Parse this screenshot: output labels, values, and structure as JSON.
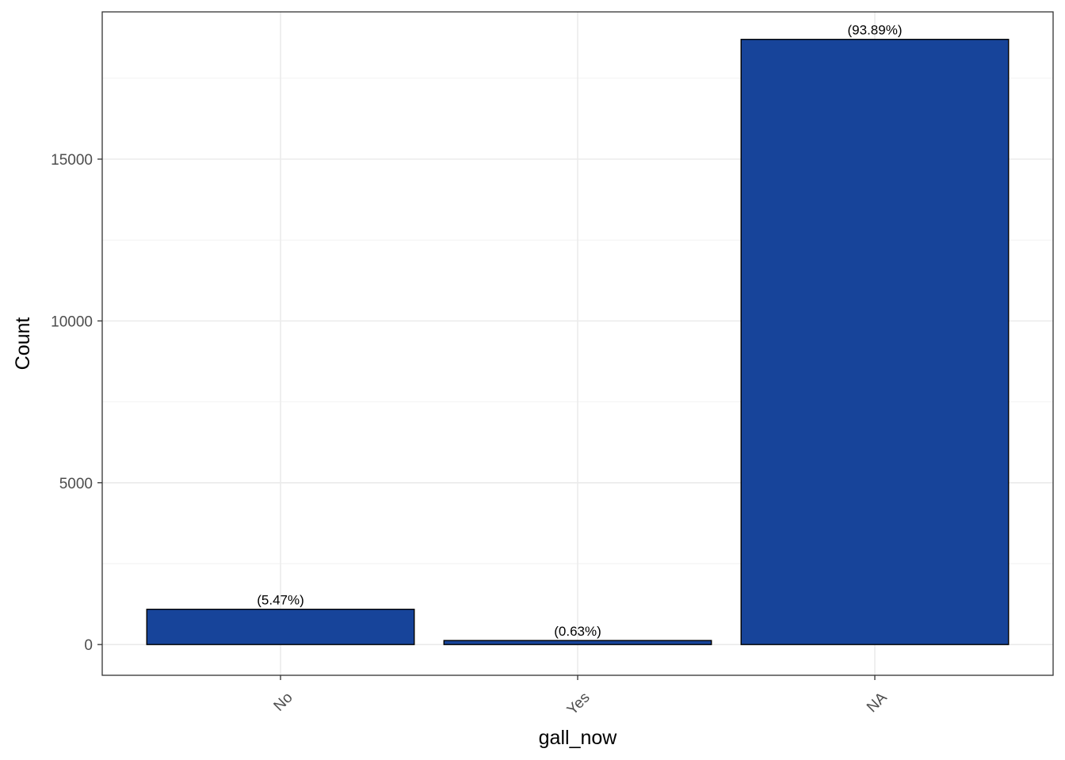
{
  "chart_data": {
    "type": "bar",
    "title": "",
    "xlabel": "gall_now",
    "ylabel": "Count",
    "categories": [
      "No",
      "Yes",
      "NA"
    ],
    "values": [
      1090,
      125,
      18700
    ],
    "data_labels": [
      "(5.47%)",
      "(0.63%)",
      "(93.89%)"
    ],
    "ylim": [
      -950,
      19550
    ],
    "yticks": [
      0,
      5000,
      10000,
      15000
    ],
    "ytick_labels": [
      "0",
      "5000",
      "10000",
      "15000"
    ],
    "grid": true,
    "legend": "none",
    "bar_color": "#17449A",
    "bar_edge_color": "#000000",
    "x_tick_rotation": 45
  }
}
